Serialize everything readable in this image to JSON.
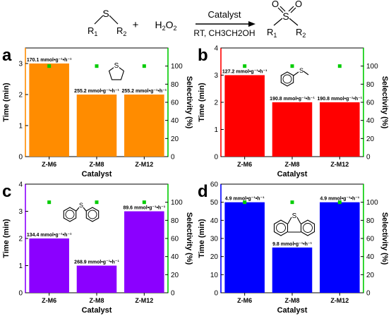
{
  "scheme": {
    "reactant_s": "S",
    "r1": "R",
    "r1_sub": "1",
    "r2": "R",
    "r2_sub": "2",
    "plus": "+",
    "h2o2_h": "H",
    "h2o2_2a": "2",
    "h2o2_o": "O",
    "h2o2_2b": "2",
    "catalyst_label": "Catalyst",
    "conditions": "RT, CH3CH2OH",
    "product_s": "S",
    "product_o1": "O",
    "product_o2": "O",
    "p_r1": "R",
    "p_r1_sub": "1",
    "p_r2": "R",
    "p_r2_sub": "2"
  },
  "chart_data": [
    {
      "type": "bar",
      "panel_label": "a",
      "molecule": "tetrahydrothiophene",
      "categories": [
        "Z-M6",
        "Z-M8",
        "Z-M12"
      ],
      "values": [
        3,
        2,
        2
      ],
      "bar_labels": [
        "170.1 mmol•g⁻¹•h⁻¹",
        "255.2 mmol•g⁻¹•h⁻¹",
        "255.2 mmol•g⁻¹•h⁻¹"
      ],
      "selectivity": [
        100,
        100,
        100
      ],
      "bar_color": "#FF8C00",
      "selectivity_color": "#00CC00",
      "xlabel": "Catalyst",
      "ylabel": "Time (min)",
      "ylabel_right": "Selectivity (%)",
      "ylim": [
        0,
        3.5
      ],
      "yticks": [
        0,
        1,
        2,
        3
      ],
      "ylim_right": [
        0,
        120
      ],
      "yticks_right": [
        0,
        20,
        40,
        60,
        80,
        100
      ]
    },
    {
      "type": "bar",
      "panel_label": "b",
      "molecule": "thioanisole",
      "categories": [
        "Z-M6",
        "Z-M8",
        "Z-M12"
      ],
      "values": [
        3,
        2,
        2
      ],
      "bar_labels": [
        "127.2 mmol•g⁻¹•h⁻¹",
        "190.8 mmol•g⁻¹•h⁻¹",
        "190.8 mmol•g⁻¹•h⁻¹"
      ],
      "selectivity": [
        100,
        100,
        100
      ],
      "bar_color": "#FF0000",
      "selectivity_color": "#00CC00",
      "xlabel": "Catalyst",
      "ylabel": "Time (min)",
      "ylabel_right": "Selectivity (%)",
      "ylim": [
        0,
        4
      ],
      "yticks": [
        0,
        1,
        2,
        3,
        4
      ],
      "ylim_right": [
        0,
        120
      ],
      "yticks_right": [
        0,
        20,
        40,
        60,
        80,
        100
      ]
    },
    {
      "type": "bar",
      "panel_label": "c",
      "molecule": "diphenyl sulfide",
      "categories": [
        "Z-M6",
        "Z-M8",
        "Z-M12"
      ],
      "values": [
        2,
        1,
        3
      ],
      "bar_labels": [
        "134.4 mmol•g⁻¹•h⁻¹",
        "268.9 mmol•g⁻¹•h⁻¹",
        "89.6 mmol•g⁻¹•h⁻¹"
      ],
      "selectivity": [
        100,
        100,
        100
      ],
      "bar_color": "#8B00FF",
      "selectivity_color": "#00CC00",
      "xlabel": "Catalyst",
      "ylabel": "Time (min)",
      "ylabel_right": "Selectivity (%)",
      "ylim": [
        0,
        4
      ],
      "yticks": [
        0,
        1,
        2,
        3,
        4
      ],
      "ylim_right": [
        0,
        120
      ],
      "yticks_right": [
        0,
        20,
        40,
        60,
        80,
        100
      ]
    },
    {
      "type": "bar",
      "panel_label": "d",
      "molecule": "dibenzothiophene",
      "categories": [
        "Z-M6",
        "Z-M8",
        "Z-M12"
      ],
      "values": [
        50,
        25,
        50
      ],
      "bar_labels": [
        "4.9 mmol•g⁻¹•h⁻¹",
        "9.8 mmol•g⁻¹•h⁻¹",
        "4.9 mmol•g⁻¹•h⁻¹"
      ],
      "selectivity": [
        100,
        100,
        100
      ],
      "bar_color": "#0000FF",
      "selectivity_color": "#00CC00",
      "xlabel": "Catalyst",
      "ylabel": "Time (min)",
      "ylabel_right": "Selectivity (%)",
      "ylim": [
        0,
        60
      ],
      "yticks": [
        0,
        10,
        20,
        30,
        40,
        50,
        60
      ],
      "ylim_right": [
        0,
        120
      ],
      "yticks_right": [
        0,
        20,
        40,
        60,
        80,
        100
      ]
    }
  ]
}
